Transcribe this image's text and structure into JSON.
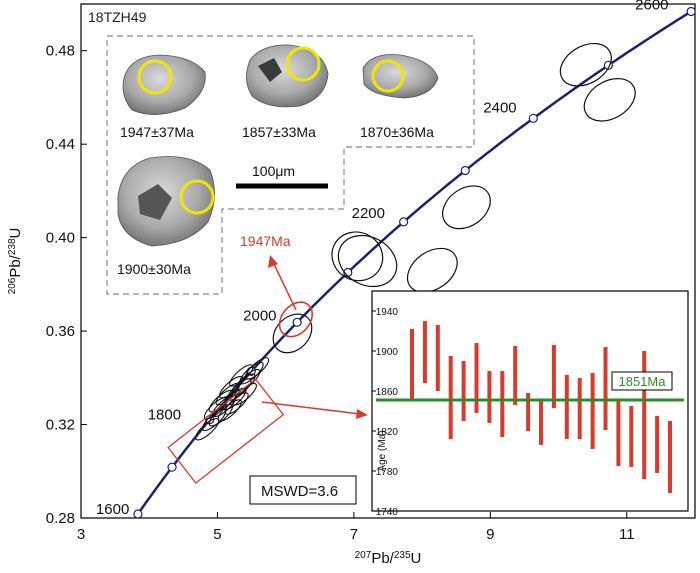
{
  "chart_data": [
    {
      "type": "scatter",
      "subtype": "concordia-diagram",
      "title": "18TZH49",
      "xlabel_parts": [
        "207",
        "Pb/",
        "235",
        "U"
      ],
      "ylabel_parts": [
        "206",
        "Pb/",
        "238",
        "U"
      ],
      "xlim": [
        3,
        12
      ],
      "ylim": [
        0.28,
        0.5
      ],
      "xticks": [
        3,
        5,
        7,
        9,
        11
      ],
      "yticks": [
        0.28,
        0.32,
        0.36,
        0.4,
        0.44,
        0.48
      ],
      "ytick_labels": [
        "0.28",
        "0.32",
        "0.36",
        "0.40",
        "0.44",
        "0.48"
      ],
      "concordia_ages_ma": [
        1600,
        1700,
        1800,
        1900,
        2000,
        2100,
        2200,
        2300,
        2400,
        2500,
        2600
      ],
      "concordia_age_labels": [
        {
          "age": "1600",
          "text": "1600"
        },
        {
          "age": "1800",
          "text": "1800"
        },
        {
          "age": "2000",
          "text": "2000"
        },
        {
          "age": "2200",
          "text": "2200"
        },
        {
          "age": "2400",
          "text": "2400"
        },
        {
          "age": "2600",
          "text": "2600"
        }
      ],
      "discordant_ellipses": [
        {
          "x": 7.2,
          "y": 0.39,
          "rx": 0.35,
          "ry": 0.013,
          "tilt": 62
        },
        {
          "x": 7.05,
          "y": 0.392,
          "rx": 0.35,
          "ry": 0.011,
          "tilt": 62
        },
        {
          "x": 8.15,
          "y": 0.386,
          "rx": 0.4,
          "ry": 0.008,
          "tilt": 35
        },
        {
          "x": 8.65,
          "y": 0.413,
          "rx": 0.38,
          "ry": 0.008,
          "tilt": 35
        },
        {
          "x": 10.4,
          "y": 0.474,
          "rx": 0.4,
          "ry": 0.008,
          "tilt": 30
        },
        {
          "x": 10.75,
          "y": 0.459,
          "rx": 0.4,
          "ry": 0.008,
          "tilt": 30
        },
        {
          "x": 6.1,
          "y": 0.359,
          "rx": 0.32,
          "ry": 0.007,
          "tilt": 45
        }
      ],
      "cluster_ellipses": [
        {
          "x": 4.85,
          "y": 0.318
        },
        {
          "x": 4.95,
          "y": 0.322
        },
        {
          "x": 5.05,
          "y": 0.324
        },
        {
          "x": 5.1,
          "y": 0.328
        },
        {
          "x": 5.18,
          "y": 0.326
        },
        {
          "x": 5.25,
          "y": 0.331
        },
        {
          "x": 5.15,
          "y": 0.333
        },
        {
          "x": 5.32,
          "y": 0.335
        },
        {
          "x": 5.38,
          "y": 0.337
        },
        {
          "x": 5.45,
          "y": 0.339
        },
        {
          "x": 5.28,
          "y": 0.329
        },
        {
          "x": 5.05,
          "y": 0.33
        },
        {
          "x": 5.5,
          "y": 0.342
        },
        {
          "x": 5.4,
          "y": 0.333
        },
        {
          "x": 5.2,
          "y": 0.336
        },
        {
          "x": 4.98,
          "y": 0.327
        },
        {
          "x": 5.58,
          "y": 0.344
        },
        {
          "x": 5.35,
          "y": 0.341
        }
      ],
      "highlight_ellipse": {
        "x": 6.15,
        "y": 0.365,
        "rx": 0.28,
        "ry": 0.006,
        "tilt": 50,
        "label": "1947Ma"
      },
      "cluster_box_label": "",
      "mswd_label": "MSWD=3.6",
      "annotation_color": "#d93a2b",
      "curve_color": "#1a2270"
    },
    {
      "type": "bar",
      "subtype": "weighted-mean-age-inset",
      "ylabel": "Age (Ma)",
      "ylim": [
        1740,
        1960
      ],
      "yticks": [
        1740,
        1780,
        1820,
        1860,
        1900,
        1940
      ],
      "mean_age": 1851,
      "mean_label": "1851Ma",
      "mean_color": "#2e8b2e",
      "bar_color": "#d93a2b",
      "age_error_bars": [
        [
          1852,
          1922
        ],
        [
          1868,
          1930
        ],
        [
          1860,
          1926
        ],
        [
          1812,
          1895
        ],
        [
          1830,
          1890
        ],
        [
          1838,
          1908
        ],
        [
          1828,
          1880
        ],
        [
          1814,
          1880
        ],
        [
          1846,
          1905
        ],
        [
          1820,
          1858
        ],
        [
          1806,
          1850
        ],
        [
          1843,
          1906
        ],
        [
          1812,
          1876
        ],
        [
          1812,
          1873
        ],
        [
          1802,
          1878
        ],
        [
          1821,
          1904
        ],
        [
          1785,
          1851
        ],
        [
          1784,
          1845
        ],
        [
          1772,
          1900
        ],
        [
          1778,
          1835
        ],
        [
          1758,
          1830
        ]
      ]
    }
  ],
  "zircon_panel": {
    "scale_label": "100μm",
    "grains": [
      {
        "age_label": "1947±37Ma"
      },
      {
        "age_label": "1857±33Ma"
      },
      {
        "age_label": "1870±36Ma"
      },
      {
        "age_label": "1900±30Ma"
      }
    ]
  }
}
